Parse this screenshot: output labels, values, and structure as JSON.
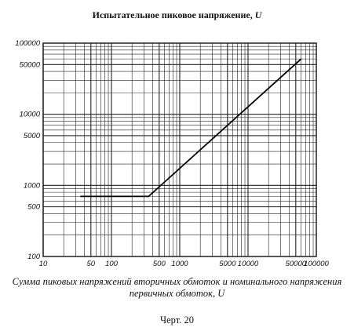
{
  "chart_data": {
    "type": "line",
    "title": "Испытательное пиковое напряжение,",
    "title_unit": "U",
    "xlabel": "Сумма пиковых напряжений вторичных обмоток и номинального напряжения первичных обмоток,",
    "xlabel_unit": "U",
    "ylabel": "Испытательное пиковое напряжение, U",
    "xscale": "log",
    "yscale": "log",
    "xlim": [
      10,
      100000
    ],
    "ylim": [
      100,
      100000
    ],
    "grid": true,
    "x_ticks": [
      10,
      50,
      100,
      500,
      1000,
      5000,
      10000,
      50000,
      100000
    ],
    "x_tick_labels": [
      "10",
      "50",
      "100",
      "500",
      "1000",
      "5000",
      "10000",
      "50000",
      "100000"
    ],
    "y_ticks": [
      100,
      500,
      1000,
      5000,
      10000,
      50000,
      100000
    ],
    "y_tick_labels": [
      "100",
      "500",
      "1000",
      "5000",
      "10000",
      "50000",
      "100000"
    ],
    "series": [
      {
        "x": [
          35,
          350,
          60000
        ],
        "y": [
          700,
          700,
          60000
        ]
      }
    ],
    "caption": "Черт. 20"
  }
}
